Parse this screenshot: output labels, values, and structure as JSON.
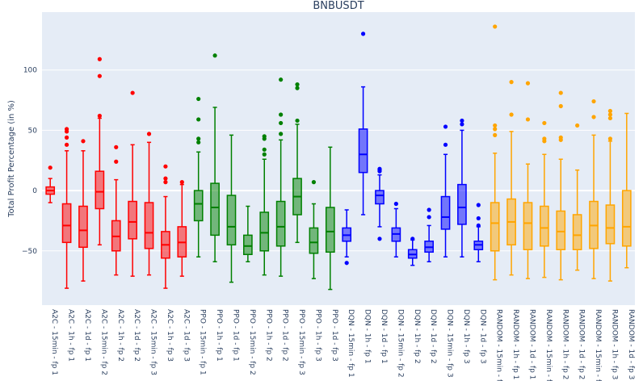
{
  "chart_data": {
    "type": "box",
    "title": "BNBUSDT",
    "xlabel": "",
    "ylabel": "Total Profit Percentage (in %)",
    "ylim": [
      -95,
      148
    ],
    "yticks": [
      -50,
      0,
      50,
      100
    ],
    "ytick_labels": [
      "−50",
      "0",
      "50",
      "100"
    ],
    "grid": true,
    "plot_background": "#e5ecf6",
    "categories": [
      "A2C - 15min - fp 1",
      "A2C - 1h - fp 1",
      "A2C - 1d - fp 1",
      "A2C - 15min - fp 2",
      "A2C - 1h - fp 2",
      "A2C - 1d - fp 2",
      "A2C - 15min - fp 3",
      "A2C - 1h - fp 3",
      "A2C - 1d - fp 3",
      "PPO - 15min - fp 1",
      "PPO - 1h - fp 1",
      "PPO - 1d - fp 1",
      "PPO - 15min - fp 2",
      "PPO - 1h - fp 2",
      "PPO - 1d - fp 2",
      "PPO - 15min - fp 3",
      "PPO - 1h - fp 3",
      "PPO - 1d - fp 3",
      "DQN - 15min - fp 1",
      "DQN - 1h - fp 1",
      "DQN - 1d - fp 1",
      "DQN - 15min - fp 2",
      "DQN - 1h - fp 2",
      "DQN - 1d - fp 2",
      "DQN - 15min - fp 3",
      "DQN - 1h - fp 3",
      "DQN - 1d - fp 3",
      "RANDOM - 15min - fp 1",
      "RANDOM - 1h - fp 1",
      "RANDOM - 1d - fp 1",
      "RANDOM - 15min - fp 2",
      "RANDOM - 1h - fp 2",
      "RANDOM - 1d - fp 2",
      "RANDOM - 15min - fp 3",
      "RANDOM - 1h - fp 3",
      "RANDOM - 1d - fp 3"
    ],
    "colors": {
      "A2C": "#ff0000",
      "PPO": "#008000",
      "DQN": "#0000ff",
      "RANDOM": "#ffa500"
    },
    "series": [
      {
        "group": "A2C",
        "lowerfence": -10,
        "q1": -3,
        "median": 0,
        "q3": 3,
        "upperfence": 10,
        "outliers": [
          19
        ]
      },
      {
        "group": "A2C",
        "lowerfence": -81,
        "q1": -43,
        "median": -29,
        "q3": -11,
        "upperfence": 33,
        "outliers": [
          38,
          44,
          49,
          51
        ]
      },
      {
        "group": "A2C",
        "lowerfence": -75,
        "q1": -47,
        "median": -33,
        "q3": -13,
        "upperfence": 33,
        "outliers": [
          41
        ]
      },
      {
        "group": "A2C",
        "lowerfence": -45,
        "q1": -15,
        "median": -1,
        "q3": 16,
        "upperfence": 60,
        "outliers": [
          62,
          95,
          109
        ]
      },
      {
        "group": "A2C",
        "lowerfence": -70,
        "q1": -50,
        "median": -38,
        "q3": -25,
        "upperfence": 9,
        "outliers": [
          24,
          36
        ]
      },
      {
        "group": "A2C",
        "lowerfence": -71,
        "q1": -40,
        "median": -26,
        "q3": -9,
        "upperfence": 38,
        "outliers": [
          81
        ]
      },
      {
        "group": "A2C",
        "lowerfence": -70,
        "q1": -48,
        "median": -35,
        "q3": -10,
        "upperfence": 40,
        "outliers": [
          47
        ]
      },
      {
        "group": "A2C",
        "lowerfence": -81,
        "q1": -56,
        "median": -45,
        "q3": -34,
        "upperfence": -5,
        "outliers": [
          7,
          10,
          20
        ]
      },
      {
        "group": "A2C",
        "lowerfence": -71,
        "q1": -55,
        "median": -43,
        "q3": -30,
        "upperfence": 5,
        "outliers": [
          7
        ]
      },
      {
        "group": "PPO",
        "lowerfence": -55,
        "q1": -25,
        "median": -11,
        "q3": 0,
        "upperfence": 32,
        "outliers": [
          40,
          43,
          59,
          76
        ]
      },
      {
        "group": "PPO",
        "lowerfence": -59,
        "q1": -37,
        "median": -14,
        "q3": 6,
        "upperfence": 69,
        "outliers": [
          112
        ]
      },
      {
        "group": "PPO",
        "lowerfence": -76,
        "q1": -45,
        "median": -30,
        "q3": -4,
        "upperfence": 46,
        "outliers": []
      },
      {
        "group": "PPO",
        "lowerfence": -59,
        "q1": -53,
        "median": -46,
        "q3": -37,
        "upperfence": -13,
        "outliers": []
      },
      {
        "group": "PPO",
        "lowerfence": -70,
        "q1": -50,
        "median": -35,
        "q3": -18,
        "upperfence": 26,
        "outliers": [
          30,
          34,
          43,
          45
        ]
      },
      {
        "group": "PPO",
        "lowerfence": -71,
        "q1": -46,
        "median": -30,
        "q3": -9,
        "upperfence": 42,
        "outliers": [
          47,
          56,
          63,
          92
        ]
      },
      {
        "group": "PPO",
        "lowerfence": -43,
        "q1": -20,
        "median": -5,
        "q3": 10,
        "upperfence": 55,
        "outliers": [
          58,
          85,
          88
        ]
      },
      {
        "group": "PPO",
        "lowerfence": -73,
        "q1": -52,
        "median": -43,
        "q3": -31,
        "upperfence": -11,
        "outliers": [
          7
        ]
      },
      {
        "group": "PPO",
        "lowerfence": -82,
        "q1": -51,
        "median": -34,
        "q3": -14,
        "upperfence": 36,
        "outliers": []
      },
      {
        "group": "DQN",
        "lowerfence": -55,
        "q1": -42,
        "median": -37,
        "q3": -31,
        "upperfence": -16,
        "outliers": [
          -60
        ]
      },
      {
        "group": "DQN",
        "lowerfence": -20,
        "q1": 15,
        "median": 30,
        "q3": 51,
        "upperfence": 86,
        "outliers": [
          130
        ]
      },
      {
        "group": "DQN",
        "lowerfence": -30,
        "q1": -11,
        "median": -4,
        "q3": 0,
        "upperfence": 13,
        "outliers": [
          16,
          17,
          18,
          -40
        ]
      },
      {
        "group": "DQN",
        "lowerfence": -55,
        "q1": -42,
        "median": -36,
        "q3": -31,
        "upperfence": -15,
        "outliers": [
          -11
        ]
      },
      {
        "group": "DQN",
        "lowerfence": -62,
        "q1": -56,
        "median": -53,
        "q3": -49,
        "upperfence": -41,
        "outliers": [
          -40
        ]
      },
      {
        "group": "DQN",
        "lowerfence": -59,
        "q1": -51,
        "median": -47,
        "q3": -42,
        "upperfence": -29,
        "outliers": [
          -16,
          -22
        ]
      },
      {
        "group": "DQN",
        "lowerfence": -55,
        "q1": -32,
        "median": -22,
        "q3": -5,
        "upperfence": 30,
        "outliers": [
          38,
          53
        ]
      },
      {
        "group": "DQN",
        "lowerfence": -55,
        "q1": -28,
        "median": -14,
        "q3": 5,
        "upperfence": 50,
        "outliers": [
          55,
          58
        ]
      },
      {
        "group": "DQN",
        "lowerfence": -59,
        "q1": -49,
        "median": -45,
        "q3": -42,
        "upperfence": -30,
        "outliers": [
          -12,
          -23,
          -29
        ]
      },
      {
        "group": "RANDOM",
        "lowerfence": -74,
        "q1": -50,
        "median": -27,
        "q3": -10,
        "upperfence": 31,
        "outliers": [
          46,
          51,
          54,
          136
        ]
      },
      {
        "group": "RANDOM",
        "lowerfence": -70,
        "q1": -45,
        "median": -26,
        "q3": -7,
        "upperfence": 49,
        "outliers": [
          63,
          90
        ]
      },
      {
        "group": "RANDOM",
        "lowerfence": -73,
        "q1": -49,
        "median": -27,
        "q3": -10,
        "upperfence": 22,
        "outliers": [
          59,
          89
        ]
      },
      {
        "group": "RANDOM",
        "lowerfence": -72,
        "q1": -46,
        "median": -31,
        "q3": -13,
        "upperfence": 30,
        "outliers": [
          41,
          43,
          56
        ]
      },
      {
        "group": "RANDOM",
        "lowerfence": -74,
        "q1": -49,
        "median": -34,
        "q3": -17,
        "upperfence": 26,
        "outliers": [
          42,
          44,
          70,
          81
        ]
      },
      {
        "group": "RANDOM",
        "lowerfence": -66,
        "q1": -49,
        "median": -37,
        "q3": -20,
        "upperfence": 17,
        "outliers": [
          54
        ]
      },
      {
        "group": "RANDOM",
        "lowerfence": -73,
        "q1": -48,
        "median": -29,
        "q3": -9,
        "upperfence": 46,
        "outliers": [
          61,
          74
        ]
      },
      {
        "group": "RANDOM",
        "lowerfence": -75,
        "q1": -44,
        "median": -31,
        "q3": -12,
        "upperfence": 41,
        "outliers": [
          43,
          60,
          63,
          66
        ]
      },
      {
        "group": "RANDOM",
        "lowerfence": -64,
        "q1": -46,
        "median": -30,
        "q3": 0,
        "upperfence": 64,
        "outliers": []
      }
    ]
  }
}
